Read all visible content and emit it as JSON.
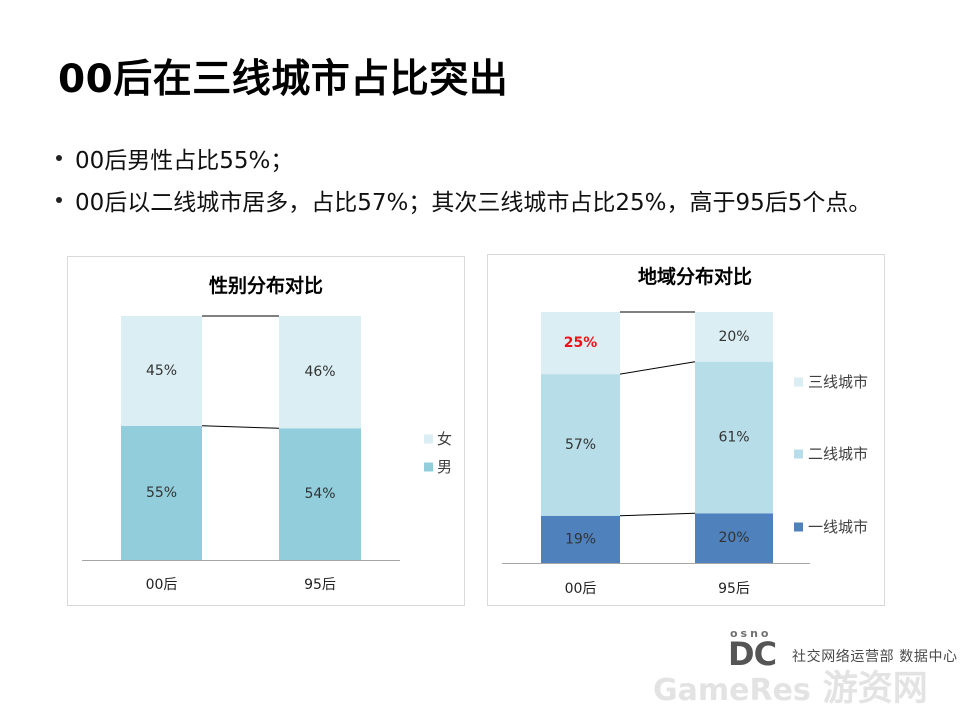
{
  "slide": {
    "title": "00后在三线城市占比突出",
    "bullets": [
      "00后男性占比55%；",
      "00后以二线城市居多，占比57%；其次三线城市占比25%，高于95后5个点。"
    ]
  },
  "chart_data": [
    {
      "type": "bar",
      "stacked": true,
      "title": "性别分布对比",
      "categories": [
        "00后",
        "95后"
      ],
      "series": [
        {
          "name": "男",
          "values": [
            55,
            54
          ],
          "color": "#92cddc"
        },
        {
          "name": "女",
          "values": [
            45,
            46
          ],
          "color": "#daeef3"
        }
      ],
      "value_suffix": "%",
      "ylim": [
        0,
        100
      ],
      "grid": false,
      "legend": "right"
    },
    {
      "type": "bar",
      "stacked": true,
      "title": "地域分布对比",
      "categories": [
        "00后",
        "95后"
      ],
      "series": [
        {
          "name": "一线城市",
          "values": [
            19,
            20
          ],
          "color": "#4f81bd"
        },
        {
          "name": "二线城市",
          "values": [
            57,
            61
          ],
          "color": "#b7dde8"
        },
        {
          "name": "三线城市",
          "values": [
            25,
            20
          ],
          "color": "#daeef3",
          "highlight": [
            true,
            false
          ]
        }
      ],
      "highlight_color": "#e8161b",
      "value_suffix": "%",
      "ylim": [
        0,
        100
      ],
      "grid": false,
      "legend": "right"
    }
  ],
  "logo": {
    "top_text": "osno",
    "mark": "DC",
    "department": "社交网络运营部 数据中心"
  },
  "watermark": {
    "latin": "GameRes",
    "cjk": "游资网"
  }
}
